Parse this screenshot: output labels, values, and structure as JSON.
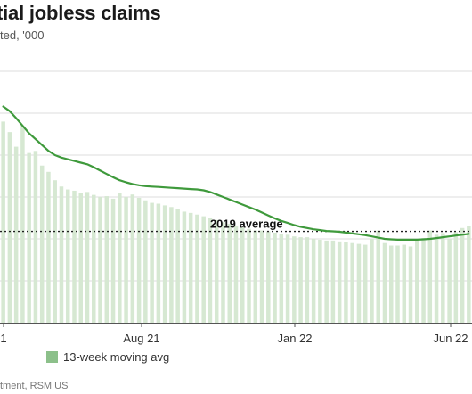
{
  "chart_data": {
    "type": "bar",
    "title": "tial jobless claims",
    "subtitle": "ted, '000",
    "source": "tment, RSM US",
    "x_tick_labels": [
      "1",
      "Aug 21",
      "Jan 22",
      "Jun 22"
    ],
    "legend": {
      "entries": [
        {
          "label": "13-week moving avg",
          "color": "#8cc08a"
        }
      ],
      "placement": "bottom-left"
    },
    "reference_line": {
      "label": "2019 average",
      "value": 218,
      "style": "dotted"
    },
    "ylim": [
      0,
      600
    ],
    "grid": true,
    "colors": {
      "bars": "#d6e8d2",
      "line": "#3f9a3c",
      "reference": "#222222",
      "grid": "#dddddd"
    },
    "bar_values": [
      480,
      455,
      420,
      470,
      405,
      410,
      375,
      360,
      340,
      325,
      318,
      315,
      310,
      312,
      305,
      300,
      302,
      296,
      310,
      300,
      306,
      298,
      292,
      286,
      284,
      280,
      276,
      272,
      265,
      262,
      258,
      254,
      250,
      245,
      240,
      236,
      232,
      228,
      224,
      220,
      220,
      218,
      215,
      212,
      210,
      206,
      204,
      204,
      200,
      198,
      196,
      196,
      194,
      192,
      190,
      188,
      186,
      200,
      220,
      190,
      184,
      184,
      186,
      182,
      196,
      202,
      220,
      210,
      214,
      200,
      216,
      226,
      230
    ],
    "series": [
      {
        "name": "13-week moving avg",
        "values": [
          516,
          505,
          488,
          470,
          452,
          438,
          424,
          410,
          400,
          394,
          390,
          386,
          382,
          378,
          371,
          363,
          355,
          347,
          340,
          335,
          331,
          328,
          326,
          325,
          324,
          323,
          322,
          321,
          320,
          319,
          318,
          316,
          312,
          306,
          300,
          294,
          288,
          282,
          276,
          270,
          263,
          256,
          249,
          243,
          238,
          233,
          229,
          226,
          223,
          221,
          219,
          218,
          217,
          215,
          213,
          211,
          209,
          206,
          203,
          200,
          199,
          198,
          198,
          198,
          198,
          199,
          200,
          202,
          204,
          206,
          208,
          210,
          212
        ]
      }
    ]
  }
}
